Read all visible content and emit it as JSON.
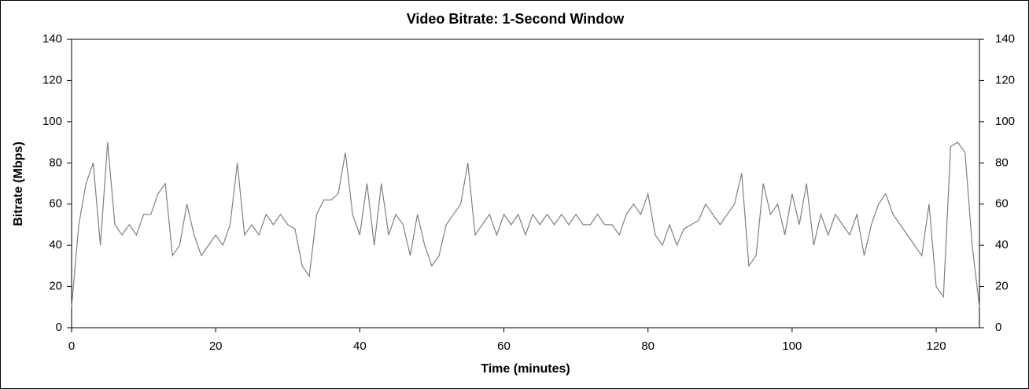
{
  "chart_data": {
    "type": "line",
    "title": "Video Bitrate: 1-Second Window",
    "x_label": "Time (minutes)",
    "y_label": "Bitrate (Mbps)",
    "x": [
      0,
      1,
      2,
      3,
      4,
      5,
      6,
      7,
      8,
      9,
      10,
      11,
      12,
      13,
      14,
      15,
      16,
      17,
      18,
      19,
      20,
      21,
      22,
      23,
      24,
      25,
      26,
      27,
      28,
      29,
      30,
      31,
      32,
      33,
      34,
      35,
      36,
      37,
      38,
      39,
      40,
      41,
      42,
      43,
      44,
      45,
      46,
      47,
      48,
      49,
      50,
      51,
      52,
      53,
      54,
      55,
      56,
      57,
      58,
      59,
      60,
      61,
      62,
      63,
      64,
      65,
      66,
      67,
      68,
      69,
      70,
      71,
      72,
      73,
      74,
      75,
      76,
      77,
      78,
      79,
      80,
      81,
      82,
      83,
      84,
      85,
      86,
      87,
      88,
      89,
      90,
      91,
      92,
      93,
      94,
      95,
      96,
      97,
      98,
      99,
      100,
      101,
      102,
      103,
      104,
      105,
      106,
      107,
      108,
      109,
      110,
      111,
      112,
      113,
      114,
      115,
      116,
      117,
      118,
      119,
      120,
      121,
      122,
      123,
      124,
      125,
      126
    ],
    "series": [
      {
        "name": "Bitrate",
        "color": "#808080",
        "axis": "y",
        "values": [
          10,
          50,
          70,
          80,
          40,
          90,
          50,
          45,
          50,
          45,
          55,
          55,
          65,
          70,
          35,
          40,
          60,
          45,
          35,
          40,
          45,
          40,
          50,
          80,
          45,
          50,
          45,
          55,
          50,
          55,
          50,
          48,
          30,
          25,
          55,
          62,
          62,
          65,
          85,
          55,
          45,
          70,
          40,
          70,
          45,
          55,
          50,
          35,
          55,
          40,
          30,
          35,
          50,
          55,
          60,
          80,
          45,
          50,
          55,
          45,
          55,
          50,
          55,
          45,
          55,
          50,
          55,
          50,
          55,
          50,
          55,
          50,
          50,
          55,
          50,
          50,
          45,
          55,
          60,
          55,
          65,
          45,
          40,
          50,
          40,
          48,
          50,
          52,
          60,
          55,
          50,
          55,
          60,
          75,
          30,
          35,
          70,
          55,
          60,
          45,
          65,
          50,
          70,
          40,
          55,
          45,
          55,
          50,
          45,
          55,
          35,
          50,
          60,
          65,
          55,
          50,
          45,
          40,
          35,
          60,
          20,
          15,
          88,
          90,
          85,
          40,
          10
        ]
      }
    ],
    "xlim": [
      0,
      126
    ],
    "xticks": [
      0,
      20,
      40,
      60,
      80,
      100,
      120
    ],
    "ylim": [
      0,
      140
    ],
    "yticks": [
      0,
      20,
      40,
      60,
      80,
      100,
      120,
      140
    ],
    "y2lim": [
      0,
      140
    ],
    "y2ticks": [
      0,
      20,
      40,
      60,
      80,
      100,
      120,
      140
    ]
  }
}
